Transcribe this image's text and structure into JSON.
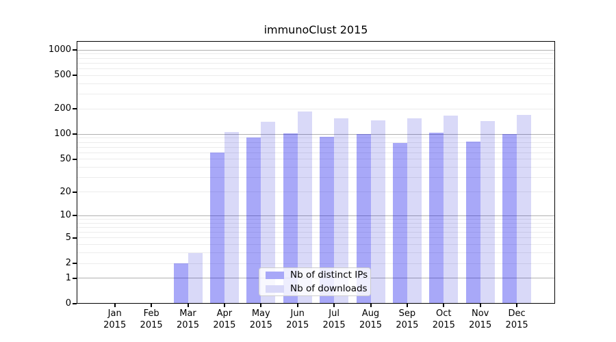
{
  "chart_data": {
    "type": "bar",
    "title": "immunoClust 2015",
    "x_ticks": [
      {
        "line1": "Jan",
        "line2": "2015"
      },
      {
        "line1": "Feb",
        "line2": "2015"
      },
      {
        "line1": "Mar",
        "line2": "2015"
      },
      {
        "line1": "Apr",
        "line2": "2015"
      },
      {
        "line1": "May",
        "line2": "2015"
      },
      {
        "line1": "Jun",
        "line2": "2015"
      },
      {
        "line1": "Jul",
        "line2": "2015"
      },
      {
        "line1": "Aug",
        "line2": "2015"
      },
      {
        "line1": "Sep",
        "line2": "2015"
      },
      {
        "line1": "Oct",
        "line2": "2015"
      },
      {
        "line1": "Nov",
        "line2": "2015"
      },
      {
        "line1": "Dec",
        "line2": "2015"
      }
    ],
    "series": [
      {
        "name": "Nb of distinct IPs",
        "color_solid": "#a8a8f8",
        "color_fill": "rgba(0,0,234,0.34)",
        "values": [
          0,
          0,
          2,
          60,
          92,
          103,
          93,
          100,
          78,
          104,
          81,
          100
        ]
      },
      {
        "name": "Nb of downloads",
        "color_solid": "#d8d8f8",
        "color_fill": "rgba(0,0,210,0.15)",
        "values": [
          0,
          0,
          3,
          106,
          140,
          186,
          155,
          147,
          155,
          168,
          143,
          170
        ]
      }
    ],
    "y_ticks": [
      0,
      1,
      2,
      5,
      10,
      20,
      50,
      100,
      200,
      500,
      1000
    ],
    "y_scale": "log1p",
    "ylim": [
      0,
      1278
    ],
    "grid": {
      "major_on": true,
      "minor_on": true,
      "major_color": "#b0b0b0",
      "minor_color": "#ececec"
    },
    "legend": {
      "position": "lower-center-inside",
      "entries": [
        "Nb of distinct IPs",
        "Nb of downloads"
      ]
    }
  }
}
